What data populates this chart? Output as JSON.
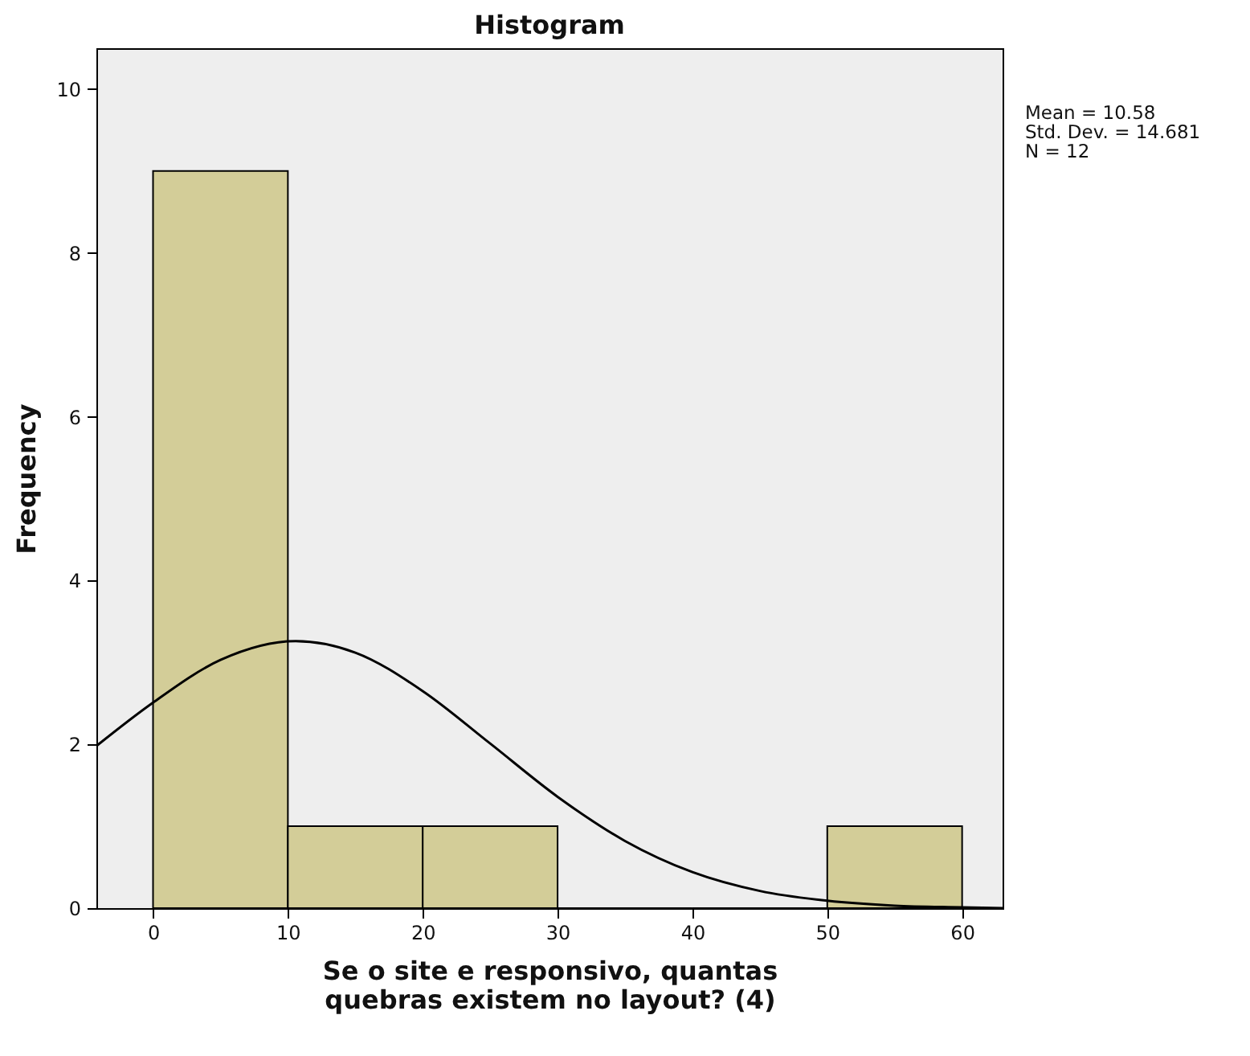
{
  "chart_data": {
    "type": "histogram",
    "title": "Histogram",
    "xlabel": "Se o site e responsivo, quantas quebras existem no layout? (4)",
    "ylabel": "Frequency",
    "bins": [
      0,
      10,
      20,
      30,
      40,
      50,
      60
    ],
    "values": [
      9,
      1,
      1,
      0,
      0,
      1
    ],
    "color": "#d3cd98",
    "series": [
      {
        "type": "line",
        "color": "#000000",
        "x": [
          -4.2,
          0,
          5,
          10.58,
          15,
          20,
          25,
          30,
          35,
          40,
          45,
          50,
          55,
          60,
          63
        ],
        "values": [
          1.98,
          2.51,
          3.03,
          3.26,
          3.12,
          2.65,
          2.01,
          1.36,
          0.82,
          0.44,
          0.21,
          0.09,
          0.03,
          0.01,
          0.0
        ]
      }
    ],
    "xlim": [
      -4.2,
      63
    ],
    "xticks": [
      0,
      10,
      20,
      30,
      40,
      50,
      60
    ],
    "ylim": [
      0,
      10.5
    ],
    "yticks": [
      0,
      2,
      4,
      6,
      8,
      10
    ],
    "grid": false,
    "annotations": [
      "Mean = 10.58",
      "Std. Dev. = 14.681",
      "N = 12"
    ]
  }
}
